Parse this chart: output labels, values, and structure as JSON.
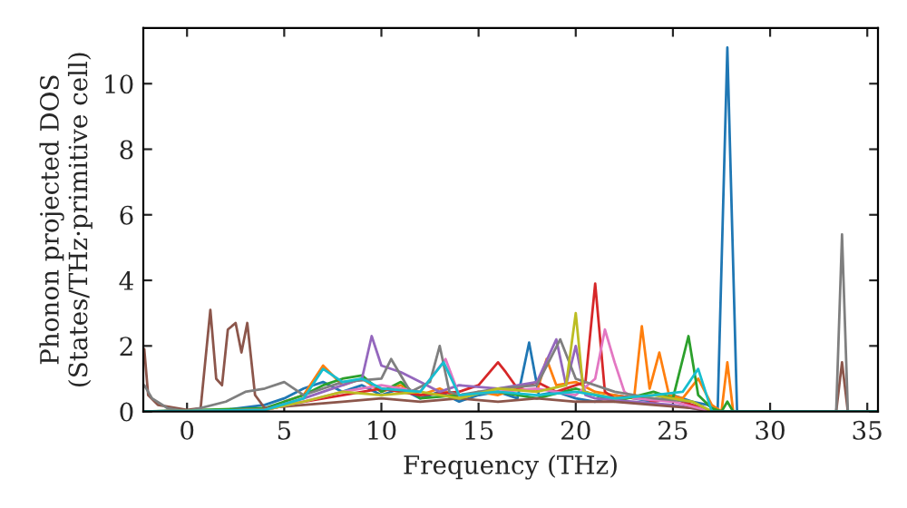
{
  "chart_data": {
    "type": "line",
    "xlabel": "Frequency (THz)",
    "ylabel": "Phonon projected DOS\n(States/THz·primitive cell)",
    "xlim": [
      -2.25,
      35.55
    ],
    "ylim": [
      0,
      11.7
    ],
    "xticks": [
      0,
      5,
      10,
      15,
      20,
      25,
      30,
      35
    ],
    "yticks": [
      0,
      2,
      4,
      6,
      8,
      10
    ],
    "grid": false,
    "legend": false,
    "marker": "none",
    "line_style": "solid",
    "series": [
      {
        "color": "#1f77b4",
        "x": [
          -2.2,
          2,
          4,
          5,
          6,
          7,
          8,
          9,
          10,
          11,
          12,
          13,
          14,
          15,
          16,
          17,
          17.6,
          18.1,
          19,
          20,
          21,
          22,
          23,
          24,
          25,
          26,
          26.8,
          27.3,
          27.8,
          28.3,
          35.5
        ],
        "values": [
          0,
          0.05,
          0.2,
          0.4,
          0.7,
          0.9,
          0.6,
          0.8,
          0.5,
          0.7,
          0.4,
          0.6,
          0.3,
          0.5,
          0.6,
          0.4,
          2.1,
          0.5,
          0.6,
          0.4,
          0.3,
          0.5,
          0.4,
          0.3,
          0.5,
          0.3,
          0.2,
          0,
          11.1,
          0,
          0
        ]
      },
      {
        "color": "#ff7f0e",
        "x": [
          5,
          6,
          7,
          8,
          9,
          10,
          11,
          12,
          13,
          14,
          15,
          16,
          17,
          18,
          18.5,
          19,
          20,
          21,
          22,
          23,
          23.4,
          23.8,
          24.3,
          24.8,
          25.5,
          26.3,
          27,
          27.5,
          27.8,
          28.1,
          35.5
        ],
        "values": [
          0.3,
          0.5,
          1.4,
          0.8,
          1.0,
          0.6,
          0.8,
          0.5,
          0.7,
          0.4,
          0.6,
          0.5,
          0.7,
          0.6,
          1.6,
          0.8,
          0.9,
          0.6,
          0.5,
          0.4,
          2.6,
          0.7,
          1.8,
          0.5,
          0.4,
          1.0,
          0.2,
          0,
          1.5,
          0,
          0
        ]
      },
      {
        "color": "#2ca02c",
        "x": [
          -2.2,
          4,
          6,
          7,
          8,
          9,
          10,
          11,
          12,
          14,
          16,
          18,
          20,
          22,
          24,
          25,
          25.8,
          26.3,
          27,
          27.5,
          27.8,
          28.1,
          35.5
        ],
        "values": [
          0,
          0.1,
          0.5,
          0.8,
          1.0,
          1.1,
          0.6,
          0.9,
          0.4,
          0.5,
          0.6,
          0.4,
          0.7,
          0.3,
          0.6,
          0.4,
          2.3,
          0.5,
          0.1,
          0,
          0.3,
          0,
          0
        ]
      },
      {
        "color": "#d62728",
        "x": [
          -2.2,
          4,
          6,
          8,
          10,
          12,
          14,
          15,
          16,
          16.4,
          17,
          18,
          19,
          20,
          20.5,
          21,
          21.5,
          22,
          23,
          24,
          25,
          26,
          27,
          35.5
        ],
        "values": [
          0,
          0.05,
          0.3,
          0.5,
          0.7,
          0.5,
          0.6,
          0.8,
          1.5,
          1.2,
          0.7,
          0.9,
          0.6,
          0.8,
          0.9,
          3.9,
          0.6,
          0.4,
          0.5,
          0.3,
          0.4,
          0.2,
          0,
          0
        ]
      },
      {
        "color": "#9467bd",
        "x": [
          -2.2,
          4,
          6,
          8,
          9,
          9.5,
          10,
          11,
          12,
          13,
          14,
          16,
          18,
          19,
          19.5,
          20,
          20.5,
          21,
          23,
          25,
          27,
          35.5
        ],
        "values": [
          0,
          0.05,
          0.4,
          0.8,
          1.0,
          2.3,
          1.4,
          1.2,
          0.9,
          0.6,
          0.8,
          0.7,
          0.9,
          2.2,
          0.8,
          2.0,
          0.5,
          0.4,
          0.3,
          0.2,
          0,
          0
        ]
      },
      {
        "color": "#8c564b",
        "x": [
          -2.2,
          -2,
          -1.5,
          0,
          0.7,
          1.2,
          1.5,
          1.8,
          2.1,
          2.5,
          2.8,
          3.1,
          3.5,
          4,
          6,
          8,
          10,
          12,
          14,
          16,
          18,
          20,
          22,
          24,
          26,
          27,
          33.4,
          33.7,
          34,
          35.5
        ],
        "values": [
          1.9,
          0.5,
          0.2,
          0.05,
          0.1,
          3.1,
          1.0,
          0.8,
          2.5,
          2.7,
          1.8,
          2.7,
          0.5,
          0.1,
          0.2,
          0.3,
          0.4,
          0.3,
          0.4,
          0.3,
          0.4,
          0.3,
          0.3,
          0.2,
          0.1,
          0,
          0,
          1.5,
          0,
          0
        ]
      },
      {
        "color": "#e377c2",
        "x": [
          -2.2,
          4,
          6,
          8,
          10,
          12,
          13.3,
          14,
          16,
          18,
          20,
          21,
          21.5,
          22,
          22.5,
          23,
          25,
          27,
          35.5
        ],
        "values": [
          0,
          0.05,
          0.3,
          0.6,
          0.8,
          0.6,
          1.6,
          0.5,
          0.6,
          0.7,
          0.5,
          1.0,
          2.5,
          1.5,
          0.6,
          0.4,
          0.3,
          0,
          0
        ]
      },
      {
        "color": "#7f7f7f",
        "x": [
          -2.2,
          -1.8,
          -1,
          0,
          2,
          3,
          4,
          5,
          6,
          8,
          10,
          10.5,
          11.5,
          12.5,
          13,
          13.5,
          14,
          16,
          18,
          19.2,
          20,
          22,
          24,
          26,
          27,
          33.4,
          33.7,
          34,
          35.5
        ],
        "values": [
          0.8,
          0.4,
          0.1,
          0,
          0.3,
          0.6,
          0.7,
          0.9,
          0.5,
          0.9,
          1.0,
          1.6,
          0.6,
          0.9,
          2.0,
          0.6,
          0.5,
          0.7,
          0.8,
          2.2,
          1.0,
          0.6,
          0.4,
          0.3,
          0,
          0,
          5.4,
          0,
          0
        ]
      },
      {
        "color": "#bcbd22",
        "x": [
          -2.2,
          4,
          6,
          8,
          10,
          12,
          14,
          16,
          18,
          19.5,
          20,
          20.4,
          22,
          24,
          26,
          27,
          35.5
        ],
        "values": [
          0,
          0.05,
          0.3,
          0.6,
          0.5,
          0.6,
          0.4,
          0.7,
          0.6,
          0.8,
          3.0,
          0.6,
          0.4,
          0.5,
          0.3,
          0,
          0
        ]
      },
      {
        "color": "#17becf",
        "x": [
          -2.2,
          4,
          6,
          7,
          8,
          9,
          10,
          12,
          13.2,
          14,
          16,
          18,
          20,
          22,
          24,
          25.5,
          26.3,
          27,
          35.5
        ],
        "values": [
          0,
          0.05,
          0.4,
          1.3,
          0.9,
          1.0,
          0.7,
          0.6,
          1.5,
          0.5,
          0.6,
          0.5,
          0.6,
          0.4,
          0.5,
          0.6,
          1.3,
          0,
          0
        ]
      }
    ]
  }
}
